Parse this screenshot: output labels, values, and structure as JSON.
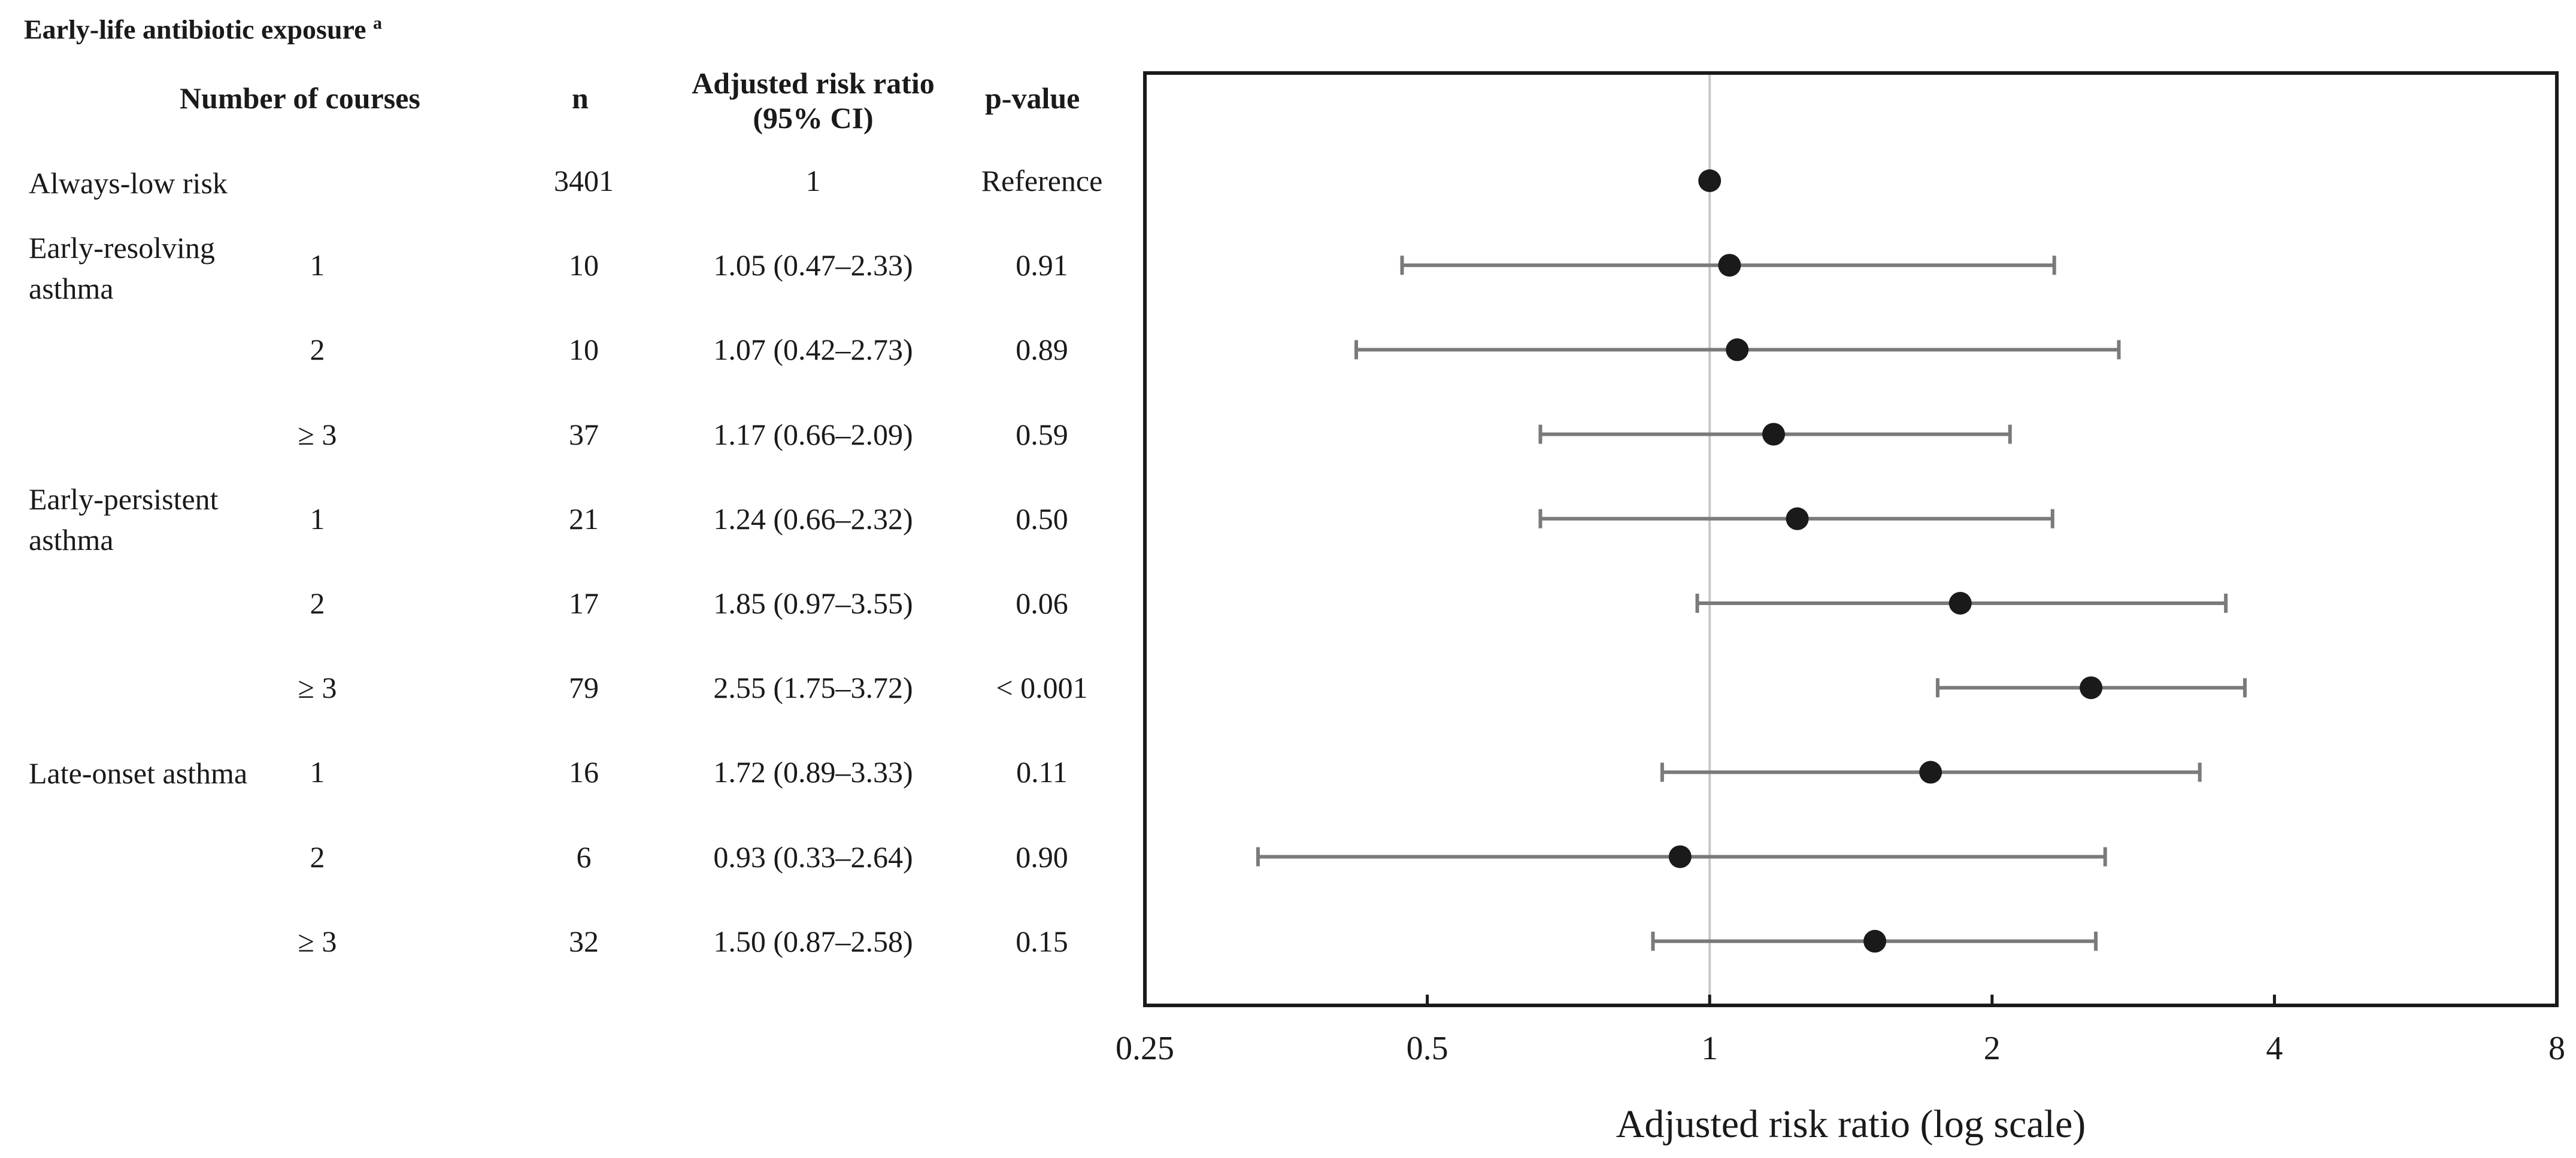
{
  "title": "Early-life antibiotic exposure",
  "title_sup": "a",
  "headers": {
    "courses": "Number of courses",
    "n": "n",
    "rr_line1": "Adjusted risk ratio",
    "rr_line2": "(95% CI)",
    "p": "p-value"
  },
  "groups": [
    "Always-low risk",
    "Early-resolving asthma",
    "Early-persistent asthma",
    "Late-onset asthma"
  ],
  "rows": [
    {
      "courses": "",
      "n": "3401",
      "rr": "1",
      "p": "Reference"
    },
    {
      "courses": "1",
      "n": "10",
      "rr": "1.05 (0.47–2.33)",
      "p": "0.91"
    },
    {
      "courses": "2",
      "n": "10",
      "rr": "1.07 (0.42–2.73)",
      "p": "0.89"
    },
    {
      "courses": "≥ 3",
      "n": "37",
      "rr": "1.17 (0.66–2.09)",
      "p": "0.59"
    },
    {
      "courses": "1",
      "n": "21",
      "rr": "1.24 (0.66–2.32)",
      "p": "0.50"
    },
    {
      "courses": "2",
      "n": "17",
      "rr": "1.85 (0.97–3.55)",
      "p": "0.06"
    },
    {
      "courses": "≥ 3",
      "n": "79",
      "rr": "2.55 (1.75–3.72)",
      "p": "< 0.001"
    },
    {
      "courses": "1",
      "n": "16",
      "rr": "1.72 (0.89–3.33)",
      "p": "0.11"
    },
    {
      "courses": "2",
      "n": "6",
      "rr": "0.93 (0.33–2.64)",
      "p": "0.90"
    },
    {
      "courses": "≥ 3",
      "n": "32",
      "rr": "1.50 (0.87–2.58)",
      "p": "0.15"
    }
  ],
  "chart_data": {
    "type": "scatter",
    "subtype": "forest-plot",
    "xscale": "log",
    "xlabel": "Adjusted risk ratio (log scale)",
    "xlim": [
      0.25,
      8
    ],
    "xticks": [
      0.25,
      0.5,
      1,
      2,
      4,
      8
    ],
    "xtick_labels": [
      "0.25",
      "0.5",
      "1",
      "2",
      "4",
      "8"
    ],
    "reference_line": 1,
    "points": [
      {
        "label": "Always-low risk",
        "value": 1,
        "lower": null,
        "upper": null
      },
      {
        "label": "Early-resolving asthma, 1",
        "value": 1.05,
        "lower": 0.47,
        "upper": 2.33
      },
      {
        "label": "Early-resolving asthma, 2",
        "value": 1.07,
        "lower": 0.42,
        "upper": 2.73
      },
      {
        "label": "Early-resolving asthma, ≥ 3",
        "value": 1.17,
        "lower": 0.66,
        "upper": 2.09
      },
      {
        "label": "Early-persistent asthma, 1",
        "value": 1.24,
        "lower": 0.66,
        "upper": 2.32
      },
      {
        "label": "Early-persistent asthma, 2",
        "value": 1.85,
        "lower": 0.97,
        "upper": 3.55
      },
      {
        "label": "Early-persistent asthma, ≥ 3",
        "value": 2.55,
        "lower": 1.75,
        "upper": 3.72
      },
      {
        "label": "Late-onset asthma, 1",
        "value": 1.72,
        "lower": 0.89,
        "upper": 3.33
      },
      {
        "label": "Late-onset asthma, 2",
        "value": 0.93,
        "lower": 0.33,
        "upper": 2.64
      },
      {
        "label": "Late-onset asthma, ≥ 3",
        "value": 1.5,
        "lower": 0.87,
        "upper": 2.58
      }
    ],
    "colors": {
      "point": "#1a1a1a",
      "whisker": "#7a7a7a",
      "refline": "#c8c8c8",
      "frame": "#1a1a1a"
    }
  }
}
